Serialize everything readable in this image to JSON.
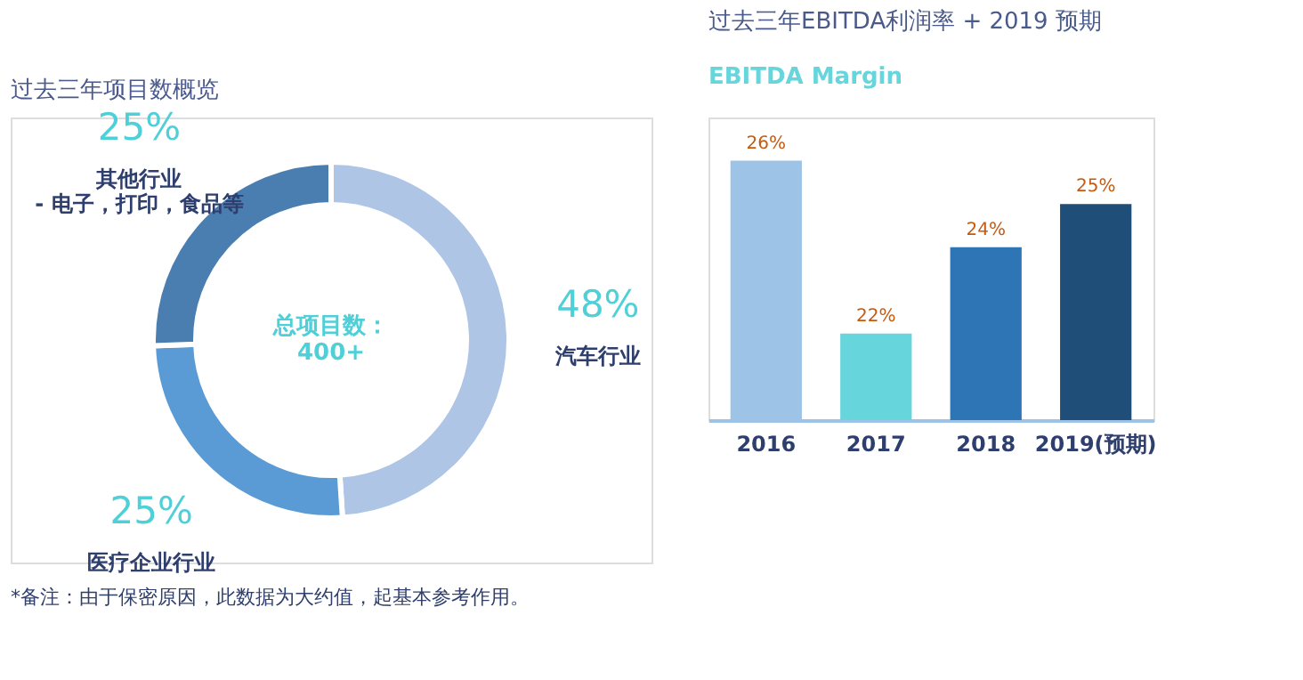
{
  "chart_data": [
    {
      "type": "donut",
      "title": "过去三年项目数概览",
      "categories": [
        "汽车行业",
        "医疗企业行业",
        "其他行业\n- 电子，打印，食品等"
      ],
      "values": [
        48,
        25,
        25
      ],
      "value_labels": [
        "48%",
        "25%",
        "25%"
      ],
      "colors": [
        "#aec5e6",
        "#5b9bd5",
        "#4a7eb0"
      ],
      "annotations": [
        "总项目数：\n400+",
        "*备注：由于保密原因，此数据为大约值，起基本参考作用。"
      ]
    },
    {
      "type": "bar",
      "title": "过去三年EBITDA利润率 + 2019 预期",
      "subtitle": "EBITDA Margin",
      "categories": [
        "2016",
        "2017",
        "2018",
        "2019(预期)"
      ],
      "values": [
        26,
        22,
        24,
        25
      ],
      "value_labels": [
        "26%",
        "22%",
        "24%",
        "25%"
      ],
      "colors": [
        "#9dc3e6",
        "#66d5dc",
        "#2e75b6",
        "#1f4e79"
      ],
      "ylim": [
        20,
        27
      ],
      "grid": false
    }
  ]
}
